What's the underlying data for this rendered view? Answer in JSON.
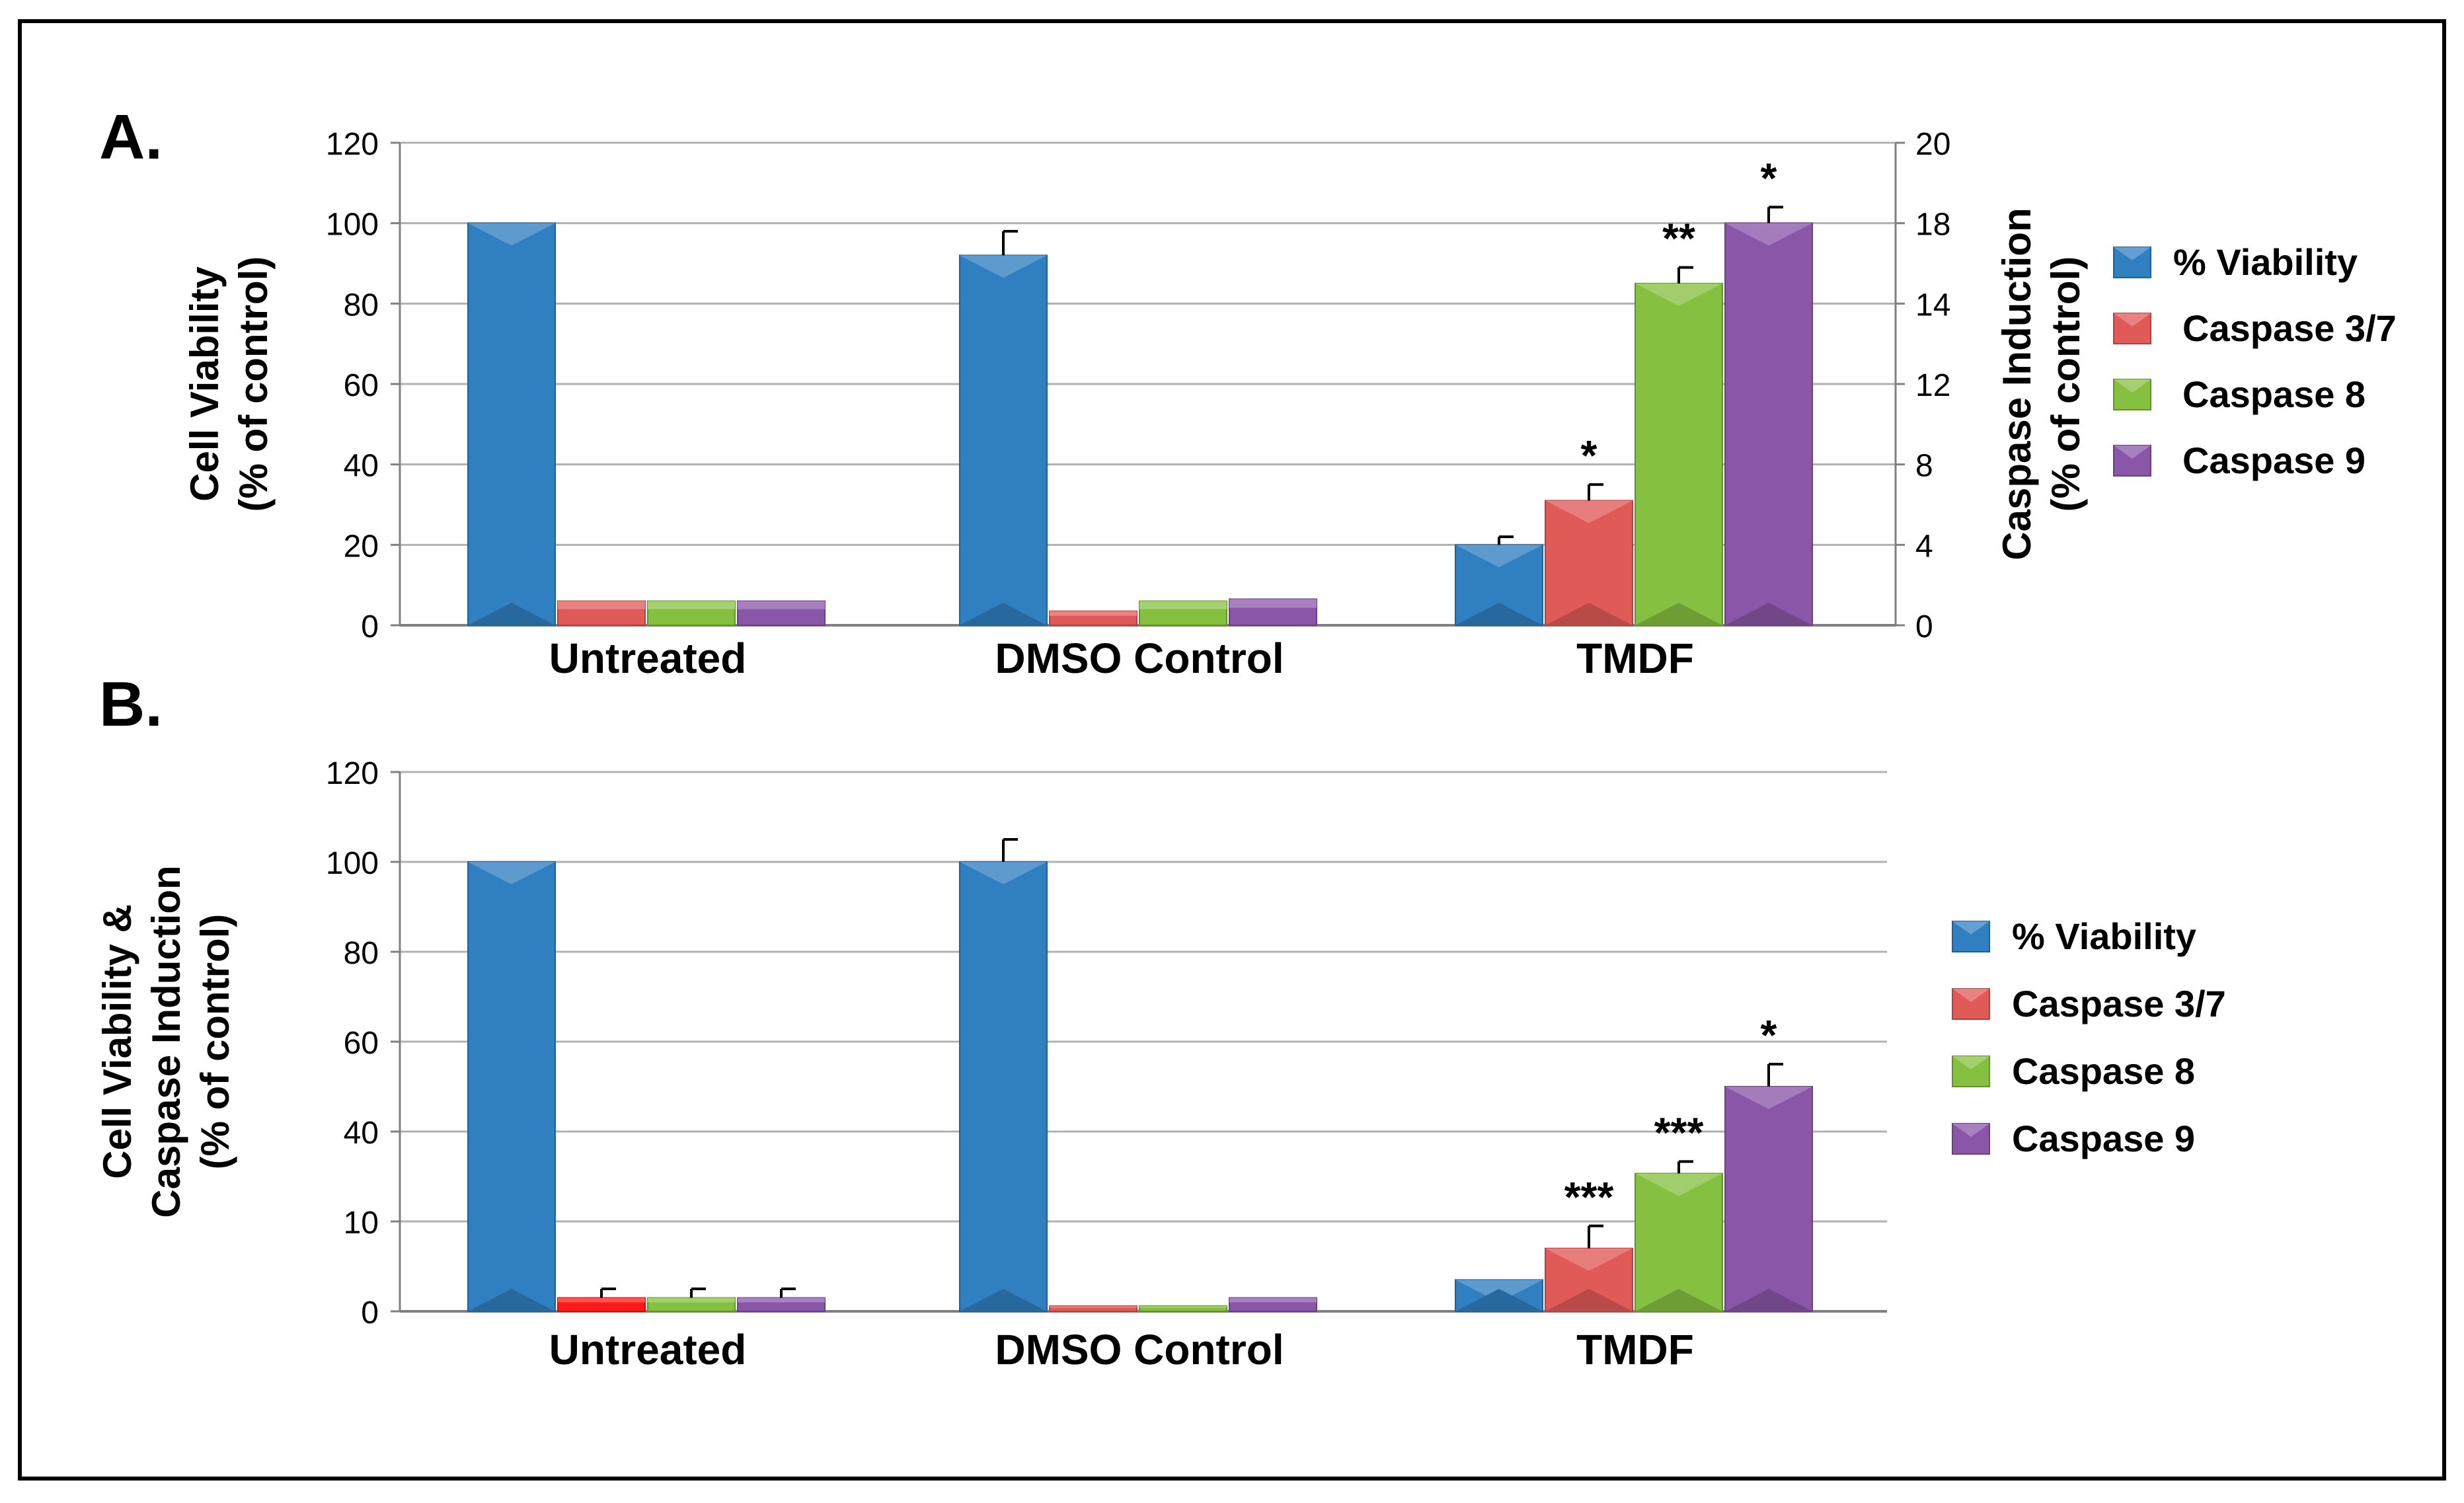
{
  "colors": {
    "viability": "#2f7fc1",
    "caspase37": "#e05a57",
    "caspase8": "#86c040",
    "caspase9": "#8a56a8",
    "caspase37_b_untreated": "#ff1a1a",
    "grid": "#b0b0b0",
    "axis": "#808080",
    "text": "#000000"
  },
  "chart_data": [
    {
      "type": "bar",
      "panel_label": "A.",
      "categories": [
        "Untreated",
        "DMSO Control",
        "TMDF"
      ],
      "y_left": {
        "label_line1": "Cell Viability",
        "label_line2": "(% of control)",
        "range": [
          0,
          120
        ],
        "ticks": [
          "0",
          "20",
          "40",
          "60",
          "80",
          "100",
          "120"
        ]
      },
      "y_right": {
        "label_line1": "Caspase Induction",
        "label_line2": "(% of control)",
        "range": [
          0,
          20
        ],
        "ticks": [
          "0",
          "4",
          "8",
          "12",
          "14",
          "18",
          "20"
        ]
      },
      "series": [
        {
          "name": "% Viability",
          "color_key": "viability",
          "axis": "left",
          "values": [
            100,
            92,
            20
          ],
          "errors": [
            0,
            6,
            2
          ]
        },
        {
          "name": "Caspase 3/7",
          "color_key": "caspase37",
          "axis": "left",
          "values": [
            6,
            3.5,
            31
          ],
          "errors": [
            0,
            0,
            4
          ]
        },
        {
          "name": "Caspase 8",
          "color_key": "caspase8",
          "axis": "left",
          "values": [
            6,
            6,
            85
          ],
          "errors": [
            0,
            0,
            4
          ]
        },
        {
          "name": "Caspase 9",
          "color_key": "caspase9",
          "axis": "left",
          "values": [
            6,
            6.5,
            100
          ],
          "errors": [
            0,
            0,
            4
          ]
        }
      ],
      "annotations": [
        {
          "series": 1,
          "category": 2,
          "text": "*"
        },
        {
          "series": 2,
          "category": 2,
          "text": "**"
        },
        {
          "series": 3,
          "category": 2,
          "text": "*"
        }
      ],
      "legend": [
        "% Viability",
        "Caspase 3/7",
        "Caspase 8",
        "Caspase 9"
      ],
      "legend_position": "right"
    },
    {
      "type": "bar",
      "panel_label": "B.",
      "categories": [
        "Untreated",
        "DMSO Control",
        "TMDF"
      ],
      "y_left": {
        "label_line1": "Cell Viability &",
        "label_line2": "Caspase Induction",
        "label_line3": "(% of control)",
        "range": [
          0,
          120
        ],
        "ticks": [
          "0",
          "10",
          "40",
          "60",
          "80",
          "100",
          "120"
        ]
      },
      "series": [
        {
          "name": "% Viability",
          "color_key": "viability",
          "values": [
            100,
            100,
            3.5
          ],
          "errors": [
            0,
            5,
            0
          ]
        },
        {
          "name": "Caspase 3/7",
          "color_key": "caspase37",
          "values": [
            1.5,
            0.6,
            7
          ],
          "errors": [
            1,
            0,
            2.5
          ]
        },
        {
          "name": "Caspase 8",
          "color_key": "caspase8",
          "values": [
            1.5,
            0.6,
            26
          ],
          "errors": [
            1,
            0,
            4
          ]
        },
        {
          "name": "Caspase 9",
          "color_key": "caspase9",
          "values": [
            1.5,
            1.5,
            50
          ],
          "errors": [
            1,
            0,
            5
          ]
        }
      ],
      "annotations": [
        {
          "series": 1,
          "category": 2,
          "text": "***"
        },
        {
          "series": 2,
          "category": 2,
          "text": "***"
        },
        {
          "series": 3,
          "category": 2,
          "text": "*"
        }
      ],
      "legend": [
        "% Viability",
        "Caspase 3/7",
        "Caspase 8",
        "Caspase 9"
      ],
      "legend_position": "right"
    }
  ]
}
